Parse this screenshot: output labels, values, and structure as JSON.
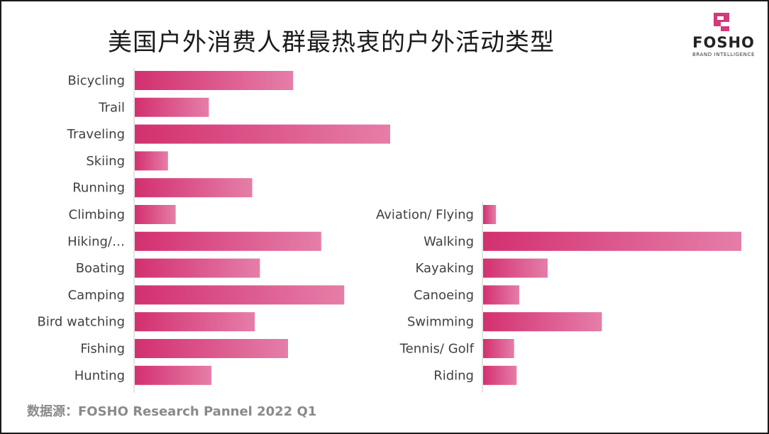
{
  "header": {
    "title": "美国户外消费人群最热衷的户外活动类型"
  },
  "logo": {
    "word": "FOSHO",
    "tagline": "BRAND INTELLIGENCE",
    "color": "#d33a7a"
  },
  "source": {
    "text": "数据源：FOSHO Research Pannel 2022 Q1"
  },
  "colors": {
    "bar_start": "#d3306f",
    "bar_end": "#e57ea8",
    "axis": "#c8c8c8"
  },
  "chart_data": [
    {
      "type": "bar",
      "orientation": "horizontal",
      "categories": [
        "Bicycling",
        "Trail",
        "Traveling",
        "Skiing",
        "Running",
        "Climbing",
        "Hiking/…",
        "Boating",
        "Camping",
        "Bird watching",
        "Fishing",
        "Hunting"
      ],
      "values": [
        31,
        14.5,
        50,
        6.5,
        23,
        8,
        36.5,
        24.5,
        41,
        23.5,
        30,
        15
      ],
      "xlim": [
        0,
        50
      ],
      "grid": false,
      "legend": "none"
    },
    {
      "type": "bar",
      "orientation": "horizontal",
      "categories": [
        "Aviation/ Flying",
        "Walking",
        "Kayaking",
        "Canoeing",
        "Swimming",
        "Tennis/ Golf",
        "Riding"
      ],
      "values": [
        2.5,
        50,
        12.5,
        7,
        23,
        6,
        6.5
      ],
      "xlim": [
        0,
        50
      ],
      "grid": false,
      "legend": "none"
    }
  ]
}
